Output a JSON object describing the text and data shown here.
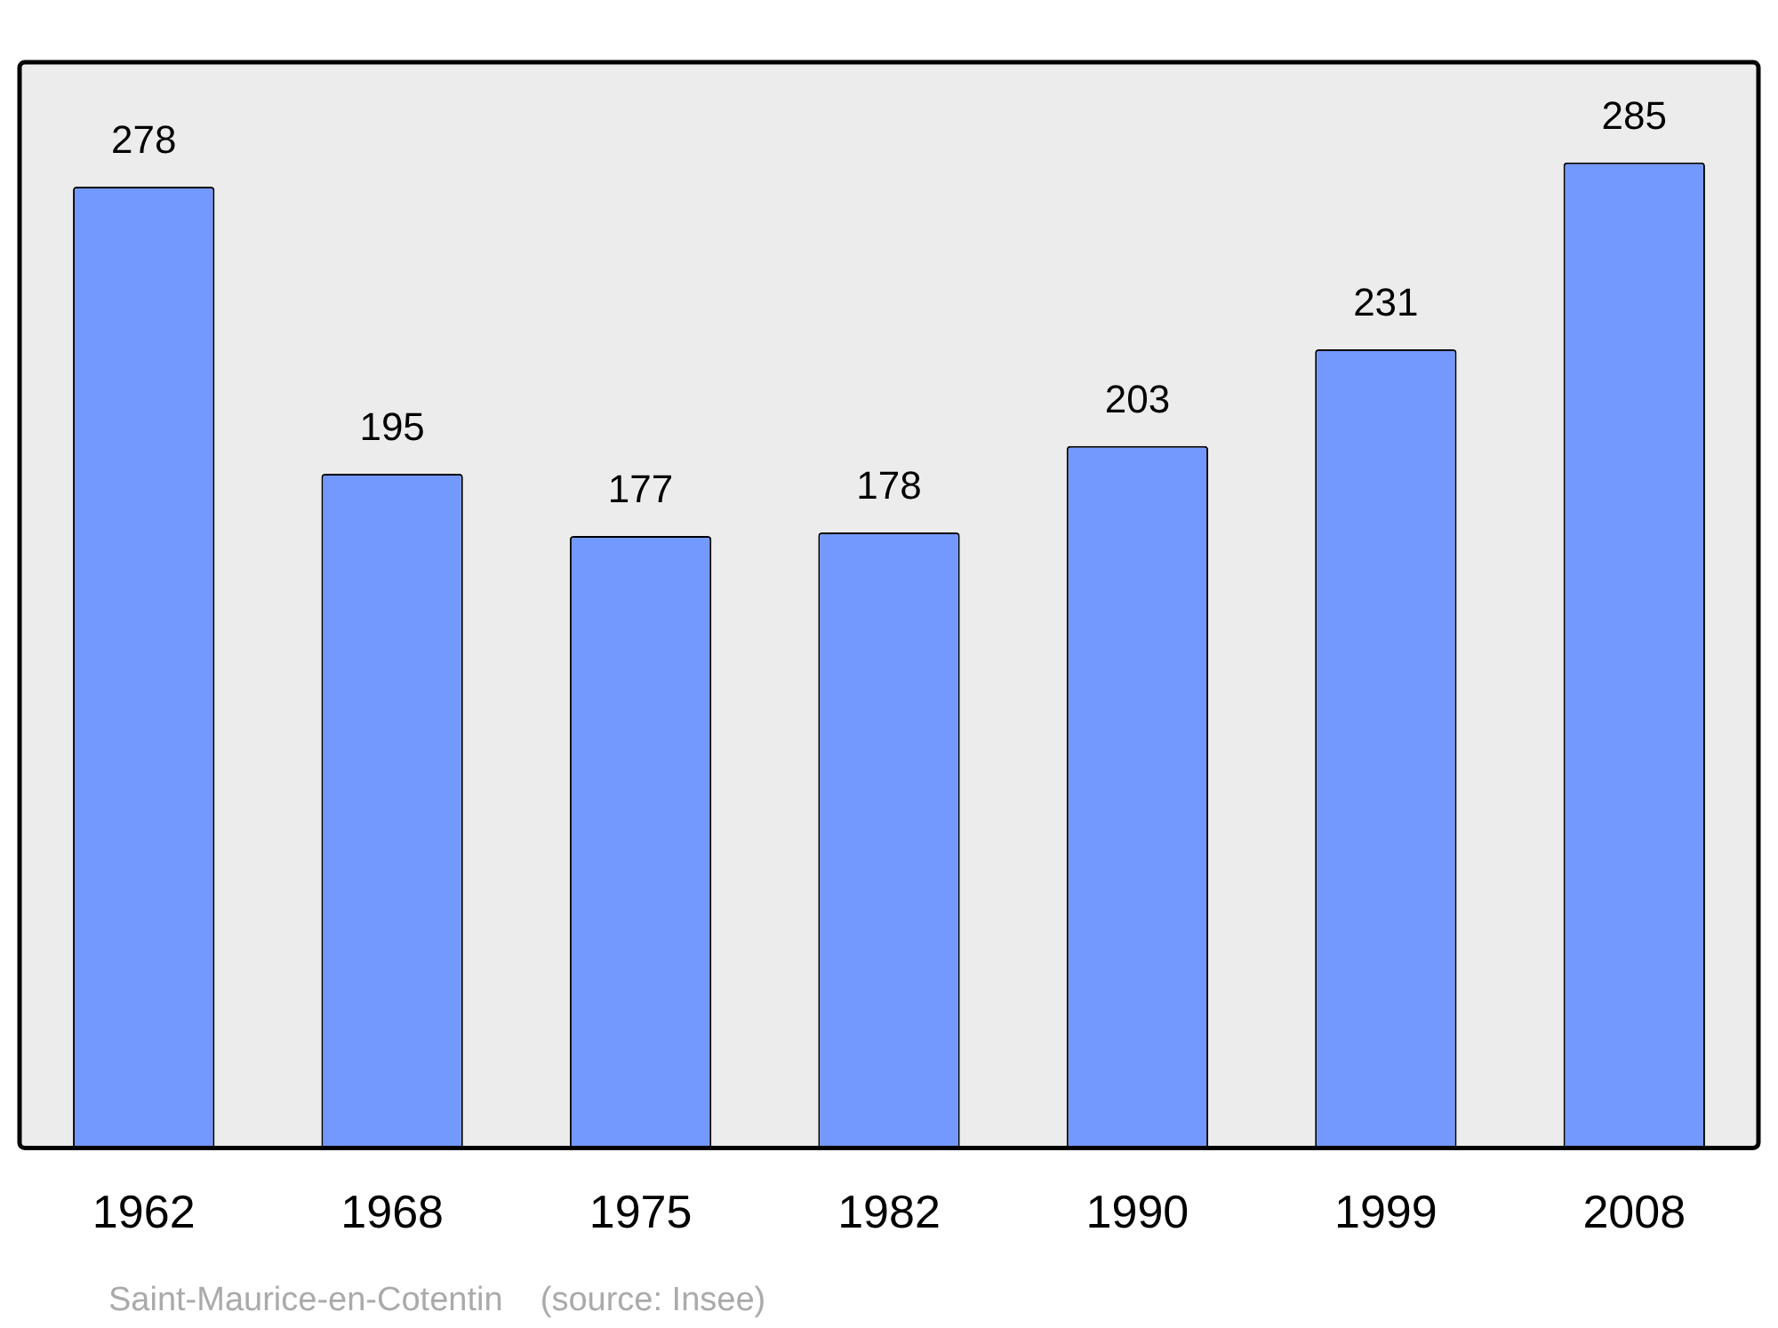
{
  "chart_data": {
    "type": "bar",
    "categories": [
      "1962",
      "1968",
      "1975",
      "1982",
      "1990",
      "1999",
      "2008"
    ],
    "values": [
      278,
      195,
      177,
      178,
      203,
      231,
      285
    ],
    "color": "#7399ff",
    "ylim": [
      0,
      314
    ],
    "data_labels": true,
    "grid": false,
    "legend": false,
    "tick_labels": "x",
    "annotations": [
      "Saint-Maurice-en-Cotentin    (source: Insee)"
    ]
  }
}
